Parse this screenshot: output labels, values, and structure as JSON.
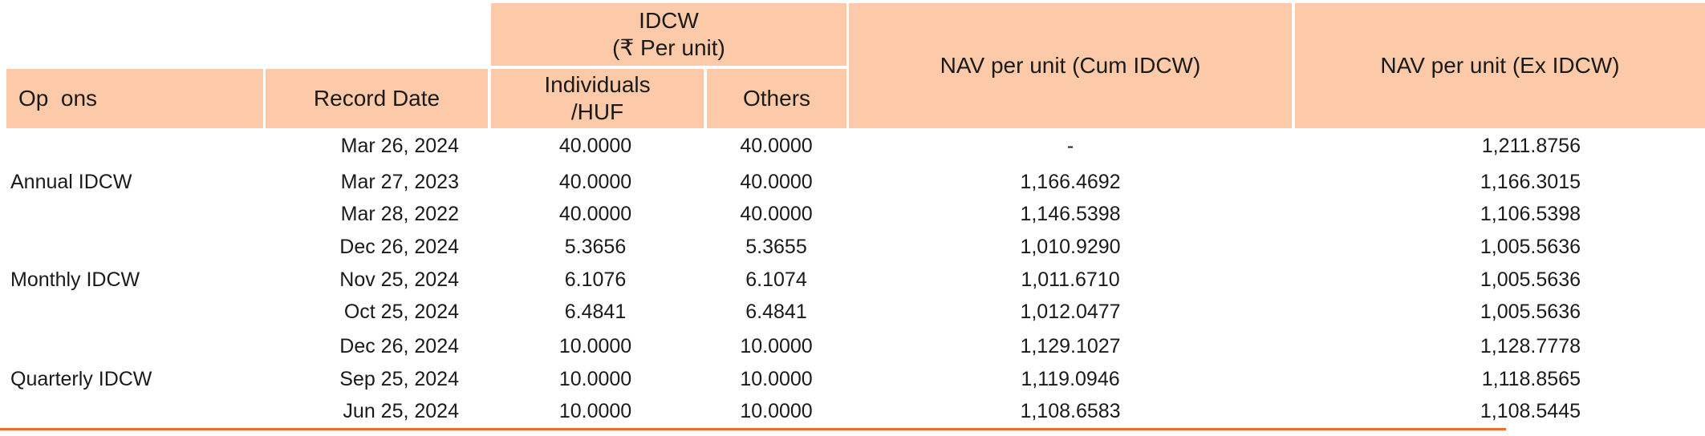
{
  "headers": {
    "options": "Op  ons",
    "record_date": "Record Date",
    "idcw_line1": "IDCW",
    "idcw_line2": "(₹ Per unit)",
    "individuals_line1": "Individuals",
    "individuals_line2": "/HUF",
    "others": "Others",
    "nav_cum": "NAV per unit (Cum IDCW)",
    "nav_ex": "NAV per unit (Ex IDCW)"
  },
  "groups": [
    {
      "option": "Annual IDCW",
      "rows": [
        {
          "date": "Mar 26, 2024",
          "individuals": "40.0000",
          "others": "40.0000",
          "nav_cum": "-",
          "nav_ex": "1,211.8756"
        },
        {
          "date": "Mar 27, 2023",
          "individuals": "40.0000",
          "others": "40.0000",
          "nav_cum": "1,166.4692",
          "nav_ex": "1,166.3015"
        },
        {
          "date": "Mar 28, 2022",
          "individuals": "40.0000",
          "others": "40.0000",
          "nav_cum": "1,146.5398",
          "nav_ex": "1,106.5398"
        }
      ]
    },
    {
      "option": "Monthly IDCW",
      "rows": [
        {
          "date": "Dec 26, 2024",
          "individuals": "5.3656",
          "others": "5.3655",
          "nav_cum": "1,010.9290",
          "nav_ex": "1,005.5636"
        },
        {
          "date": "Nov 25, 2024",
          "individuals": "6.1076",
          "others": "6.1074",
          "nav_cum": "1,011.6710",
          "nav_ex": "1,005.5636"
        },
        {
          "date": "Oct 25, 2024",
          "individuals": "6.4841",
          "others": "6.4841",
          "nav_cum": "1,012.0477",
          "nav_ex": "1,005.5636"
        }
      ]
    },
    {
      "option": "Quarterly IDCW",
      "rows": [
        {
          "date": "Dec 26, 2024",
          "individuals": "10.0000",
          "others": "10.0000",
          "nav_cum": "1,129.1027",
          "nav_ex": "1,128.7778"
        },
        {
          "date": "Sep 25, 2024",
          "individuals": "10.0000",
          "others": "10.0000",
          "nav_cum": "1,119.0946",
          "nav_ex": "1,118.8565"
        },
        {
          "date": "Jun 25, 2024",
          "individuals": "10.0000",
          "others": "10.0000",
          "nav_cum": "1,108.6583",
          "nav_ex": "1,108.5445"
        }
      ]
    }
  ],
  "colors": {
    "header_bg": "#fccaa9",
    "rule": "#ec6d2d"
  }
}
